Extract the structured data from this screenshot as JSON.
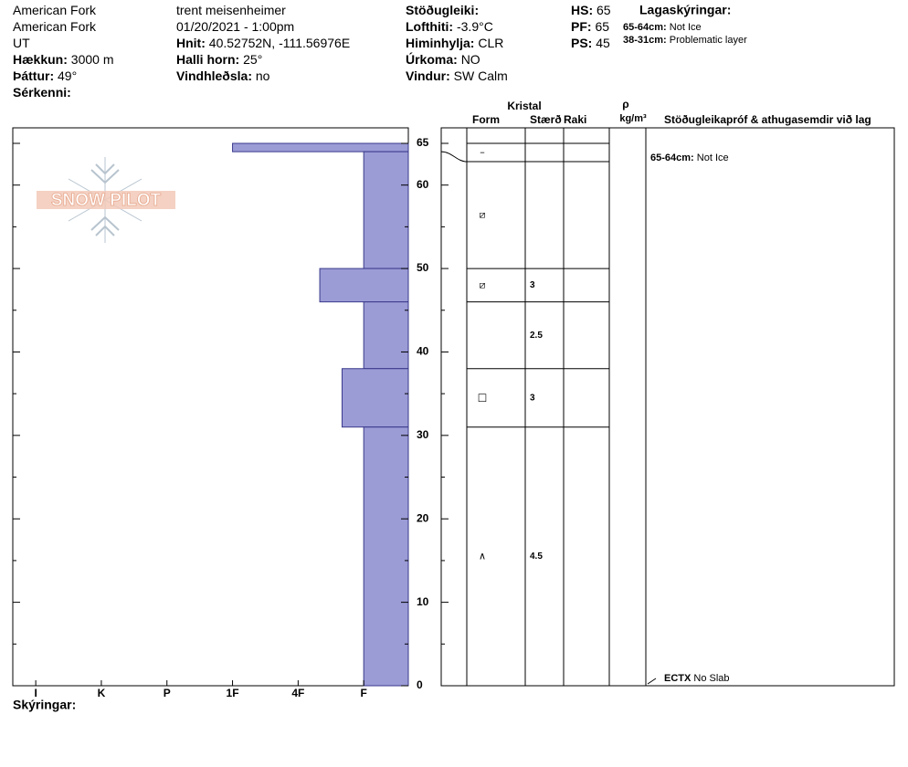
{
  "header": {
    "columns": [
      [
        {
          "value": "American Fork"
        },
        {
          "value": "American Fork"
        },
        {
          "value": "UT"
        },
        {
          "label": "Hækkun:",
          "value": "3000 m"
        },
        {
          "label": "Þáttur:",
          "value": "49°"
        },
        {
          "label": "Sérkenni:"
        }
      ],
      [
        {
          "value": "trent meisenheimer"
        },
        {
          "value": "01/20/2021 - 1:00pm"
        },
        {
          "label": "Hnit:",
          "value": "40.52752N, -111.56976E"
        },
        {
          "label": "Halli horn:",
          "value": "25°"
        },
        {
          "label": "Vindhleðsla:",
          "value": "no"
        }
      ],
      [
        {
          "label": "Stöðugleiki:"
        },
        {
          "label": "Lofthiti:",
          "value": "-3.9°C"
        },
        {
          "label": "Himinhylja:",
          "value": "CLR"
        },
        {
          "label": "Úrkoma:",
          "value": "NO"
        },
        {
          "label": "Vindur:",
          "value": "SW Calm"
        }
      ],
      [
        {
          "label": "HS:",
          "value": "65"
        },
        {
          "label": "PF:",
          "value": "65"
        },
        {
          "label": "PS:",
          "value": "45"
        }
      ]
    ],
    "legend_title": "Lagaskýringar:",
    "legend": [
      {
        "label": "65-64cm:",
        "value": "Not Ice"
      },
      {
        "label": "38-31cm:",
        "value": "Problematic layer"
      }
    ]
  },
  "logo": "SNOW PILOT",
  "profile": {
    "color": "#9b9bd6",
    "ylim": [
      0,
      65
    ],
    "yticks": [
      0,
      10,
      20,
      30,
      40,
      50,
      60,
      65
    ],
    "minor_yticks": [
      5,
      15,
      25,
      35,
      45,
      55
    ],
    "xlim": [
      6.35,
      0.32
    ],
    "xticks": [
      {
        "value": 6,
        "label": "I"
      },
      {
        "value": 5,
        "label": "K"
      },
      {
        "value": 4,
        "label": "P"
      },
      {
        "value": 3,
        "label": "1F"
      },
      {
        "value": 2,
        "label": "4F"
      },
      {
        "value": 1,
        "label": "F"
      }
    ],
    "layers": [
      {
        "top": 65,
        "bottom": 64,
        "hardness": 3
      },
      {
        "top": 64,
        "bottom": 50,
        "hardness": 1
      },
      {
        "top": 50,
        "bottom": 46,
        "hardness": 1.67
      },
      {
        "top": 46,
        "bottom": 38,
        "hardness": 1
      },
      {
        "top": 38,
        "bottom": 31,
        "hardness": 1.33
      },
      {
        "top": 31,
        "bottom": 0,
        "hardness": 1
      }
    ]
  },
  "table": {
    "crystal_header": "Kristal",
    "headers": [
      "Form",
      "Stærð",
      "Raki"
    ],
    "density_symbol": "ρ",
    "density_unit": "kg/m³",
    "comments_header": "Stöðugleikapróf & athugasemdir við lag",
    "rows": [
      {
        "top": 65,
        "bottom": 64,
        "form": "–",
        "size": null
      },
      {
        "top": 64,
        "bottom": 50,
        "form": "⧄",
        "size": null
      },
      {
        "top": 50,
        "bottom": 46,
        "form": "⧄",
        "size": "3"
      },
      {
        "top": 46,
        "bottom": 38,
        "form": null,
        "size": "2.5"
      },
      {
        "top": 38,
        "bottom": 31,
        "form": "□",
        "size": "3"
      },
      {
        "top": 31,
        "bottom": 0,
        "form": "∧",
        "size": "4.5"
      }
    ],
    "comments": [
      {
        "label": "65-64cm:",
        "value": "Not Ice"
      }
    ],
    "test": {
      "label": "ECTX",
      "value": "No Slab"
    }
  },
  "footer": "Skýringar:"
}
